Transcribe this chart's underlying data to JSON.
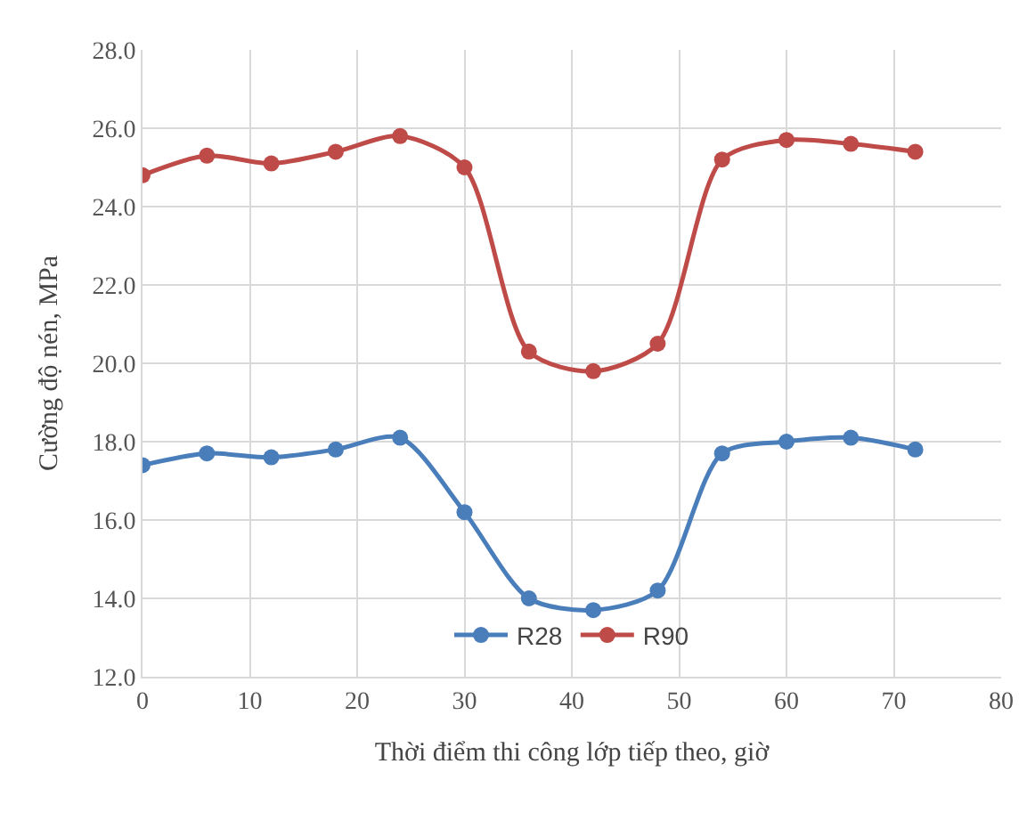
{
  "chart_data": {
    "type": "line",
    "xlabel": "Thời điểm thi công lớp tiếp theo, giờ",
    "ylabel": "Cường độ nén, MPa",
    "x": [
      0,
      6,
      12,
      18,
      24,
      30,
      36,
      42,
      48,
      54,
      60,
      66,
      72
    ],
    "series": [
      {
        "name": "R28",
        "color": "#4a7ebb",
        "values": [
          17.4,
          17.7,
          17.6,
          17.8,
          18.1,
          16.2,
          14.0,
          13.7,
          14.2,
          17.7,
          18.0,
          18.1,
          17.8
        ]
      },
      {
        "name": "R90",
        "color": "#be4b48",
        "values": [
          24.8,
          25.3,
          25.1,
          25.4,
          25.8,
          25.0,
          20.3,
          19.8,
          20.5,
          25.2,
          25.7,
          25.6,
          25.4
        ]
      }
    ],
    "xlim": [
      0,
      80
    ],
    "xticks": [
      0,
      10,
      20,
      30,
      40,
      50,
      60,
      70,
      80
    ],
    "ylim": [
      12,
      28
    ],
    "yticks": [
      {
        "value": 12,
        "label": "12.0"
      },
      {
        "value": 14,
        "label": "14.0"
      },
      {
        "value": 16,
        "label": "16.0"
      },
      {
        "value": 18,
        "label": "18.0"
      },
      {
        "value": 20,
        "label": "20.0"
      },
      {
        "value": 22,
        "label": "22.0"
      },
      {
        "value": 24,
        "label": "24.0"
      },
      {
        "value": 26,
        "label": "26.0"
      },
      {
        "value": 28,
        "label": "28.0"
      }
    ],
    "grid": true,
    "legend": "bottom",
    "marker": "circle",
    "line_style": "solid"
  }
}
